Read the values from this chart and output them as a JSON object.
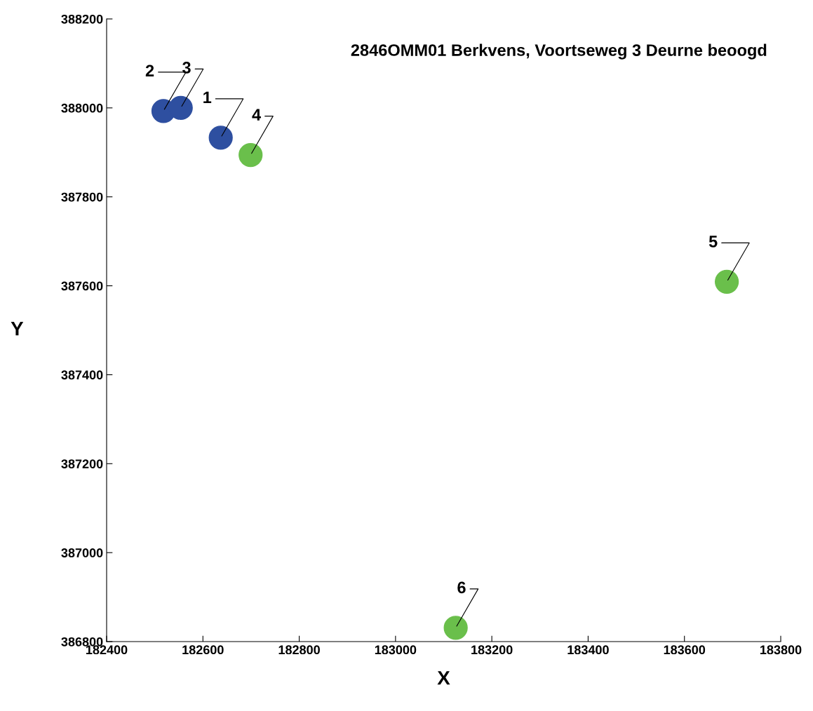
{
  "chart_data": {
    "type": "scatter",
    "title": "2846OMM01 Berkvens, Voortseweg 3 Deurne beoogd",
    "xlabel": "X",
    "ylabel": "Y",
    "series": [
      {
        "color": "#2e4fa0",
        "x": [
          182637,
          182518,
          182554
        ],
        "values": [
          387933,
          387993,
          388000
        ]
      },
      {
        "color": "#6abf4b",
        "x": [
          182699,
          183688,
          183125
        ],
        "values": [
          387894,
          387609,
          386831
        ]
      }
    ],
    "annotations": [
      {
        "text": "2",
        "x": 182518,
        "y": 387993
      },
      {
        "text": "3",
        "x": 182554,
        "y": 388000
      },
      {
        "text": "1",
        "x": 182637,
        "y": 387933
      },
      {
        "text": "4",
        "x": 182699,
        "y": 387894
      },
      {
        "text": "5",
        "x": 183688,
        "y": 387609
      },
      {
        "text": "6",
        "x": 183125,
        "y": 386831
      }
    ],
    "xlim": [
      182400,
      183800
    ],
    "xticks": [
      182400,
      182600,
      182800,
      183000,
      183200,
      183400,
      183600,
      183800
    ],
    "ylim": [
      386800,
      388200
    ],
    "yticks": [
      386800,
      387000,
      387200,
      387400,
      387600,
      387800,
      388000,
      388200
    ],
    "grid": false,
    "legend": false,
    "marker": "circle"
  }
}
